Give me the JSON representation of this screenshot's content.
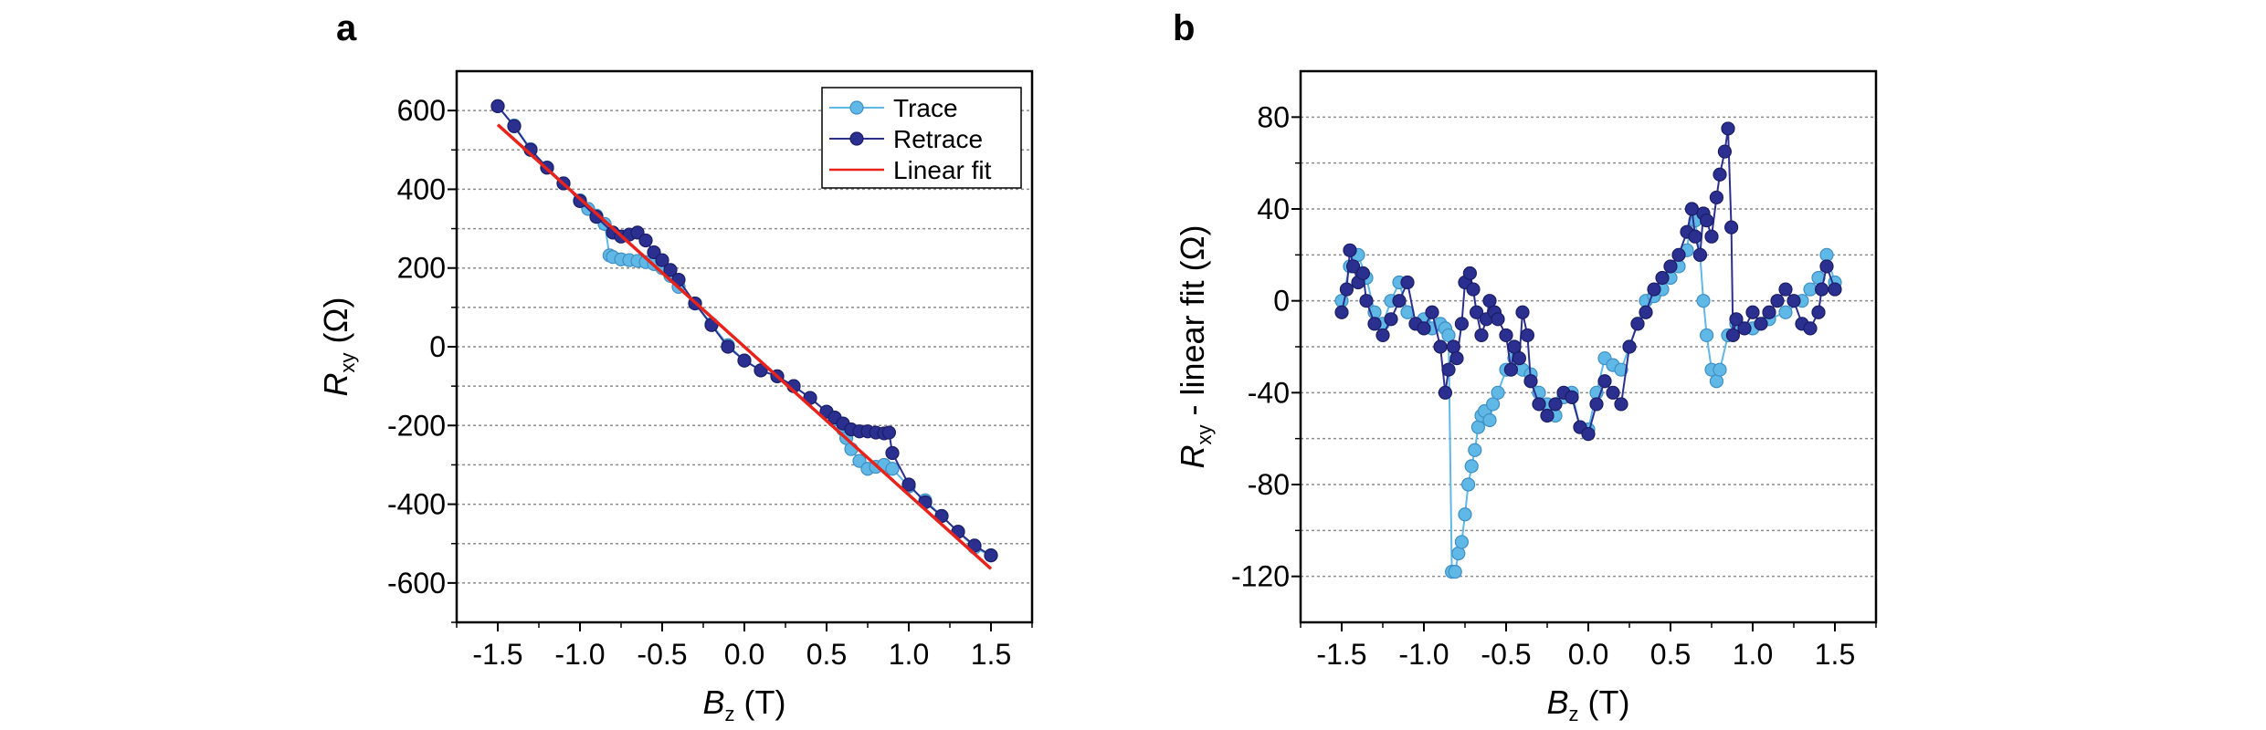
{
  "colors": {
    "trace": "#5fb8e6",
    "trace_stroke": "#3f8fc4",
    "retrace": "#2b2f8f",
    "retrace_stroke": "#1b1e66",
    "fit": "#e8231b",
    "grid": "#8c8c8c",
    "axis": "#000000"
  },
  "chart_data": [
    {
      "panel": "a",
      "type": "scatter",
      "xlabel": {
        "italic": "B",
        "sub": "z",
        "unit": " (T)"
      },
      "ylabel": {
        "italic": "R",
        "sub": "xy",
        "unit": " (Ω)"
      },
      "xlim": [
        -1.75,
        1.75
      ],
      "ylim": [
        -700,
        700
      ],
      "xticks": [
        -1.5,
        -1.0,
        -0.5,
        0.0,
        0.5,
        1.0,
        1.5
      ],
      "xtick_labels": [
        "-1.5",
        "-1.0",
        "-0.5",
        "0.0",
        "0.5",
        "1.0",
        "1.5"
      ],
      "yticks": [
        -600,
        -400,
        -200,
        0,
        200,
        400,
        600
      ],
      "ytick_labels": [
        "-600",
        "-400",
        "-200",
        "0",
        "200",
        "400",
        "600"
      ],
      "grid_y": [
        -700,
        -600,
        -500,
        -400,
        -300,
        -200,
        -100,
        0,
        100,
        200,
        300,
        400,
        500,
        600
      ],
      "legend": [
        "Trace",
        "Retrace",
        "Linear fit"
      ],
      "legend_position": "top-right",
      "linear_fit": {
        "slope": -376,
        "intercept": 0,
        "x_range": [
          -1.5,
          1.5
        ]
      },
      "series": [
        {
          "name": "Trace",
          "x": [
            -1.5,
            -1.4,
            -1.3,
            -1.2,
            -1.1,
            -1.0,
            -0.95,
            -0.9,
            -0.85,
            -0.82,
            -0.8,
            -0.75,
            -0.7,
            -0.65,
            -0.6,
            -0.55,
            -0.5,
            -0.45,
            -0.4,
            -0.3,
            -0.2,
            -0.1,
            0.0,
            0.1,
            0.2,
            0.3,
            0.4,
            0.5,
            0.55,
            0.6,
            0.62,
            0.65,
            0.7,
            0.75,
            0.8,
            0.85,
            0.9,
            1.0,
            1.1,
            1.2,
            1.3,
            1.4,
            1.5
          ],
          "y": [
            611,
            562,
            502,
            455,
            415,
            372,
            350,
            333,
            312,
            232,
            228,
            222,
            220,
            218,
            215,
            210,
            200,
            180,
            152,
            110,
            58,
            4,
            -35,
            -60,
            -75,
            -100,
            -130,
            -165,
            -185,
            -210,
            -232,
            -260,
            -290,
            -310,
            -305,
            -300,
            -310,
            -355,
            -390,
            -430,
            -470,
            -510,
            -530
          ]
        },
        {
          "name": "Retrace",
          "x": [
            -1.5,
            -1.4,
            -1.3,
            -1.2,
            -1.1,
            -1.0,
            -0.9,
            -0.8,
            -0.75,
            -0.7,
            -0.65,
            -0.6,
            -0.55,
            -0.5,
            -0.45,
            -0.4,
            -0.3,
            -0.2,
            -0.1,
            0.0,
            0.1,
            0.2,
            0.3,
            0.4,
            0.5,
            0.55,
            0.6,
            0.65,
            0.7,
            0.75,
            0.8,
            0.85,
            0.88,
            0.9,
            1.0,
            1.1,
            1.2,
            1.3,
            1.4,
            1.5
          ],
          "y": [
            611,
            560,
            500,
            455,
            415,
            370,
            330,
            290,
            280,
            285,
            290,
            270,
            240,
            220,
            195,
            170,
            110,
            55,
            0,
            -35,
            -60,
            -75,
            -100,
            -130,
            -165,
            -180,
            -195,
            -210,
            -215,
            -215,
            -218,
            -220,
            -218,
            -270,
            -350,
            -395,
            -430,
            -470,
            -505,
            -530
          ]
        }
      ]
    },
    {
      "panel": "b",
      "type": "scatter",
      "xlabel": {
        "italic": "B",
        "sub": "z",
        "unit": " (T)"
      },
      "ylabel": {
        "italic": "R",
        "sub": "xy",
        "unit": " - linear fit (Ω)"
      },
      "xlim": [
        -1.75,
        1.75
      ],
      "ylim": [
        -140,
        100
      ],
      "xticks": [
        -1.5,
        -1.0,
        -0.5,
        0.0,
        0.5,
        1.0,
        1.5
      ],
      "xtick_labels": [
        "-1.5",
        "-1.0",
        "-0.5",
        "0.0",
        "0.5",
        "1.0",
        "1.5"
      ],
      "yticks": [
        -120,
        -80,
        -40,
        0,
        40,
        80
      ],
      "ytick_labels": [
        "-120",
        "-80",
        "-40",
        "0",
        "40",
        "80"
      ],
      "grid_y": [
        -120,
        -100,
        -80,
        -60,
        -40,
        -20,
        0,
        20,
        40,
        60,
        80
      ],
      "series": [
        {
          "name": "Trace",
          "x": [
            -1.5,
            -1.45,
            -1.4,
            -1.35,
            -1.3,
            -1.25,
            -1.2,
            -1.15,
            -1.1,
            -1.05,
            -1.0,
            -0.95,
            -0.9,
            -0.87,
            -0.85,
            -0.83,
            -0.81,
            -0.79,
            -0.77,
            -0.75,
            -0.73,
            -0.71,
            -0.69,
            -0.67,
            -0.65,
            -0.63,
            -0.6,
            -0.58,
            -0.55,
            -0.5,
            -0.45,
            -0.4,
            -0.35,
            -0.3,
            -0.25,
            -0.2,
            -0.15,
            -0.1,
            -0.05,
            0.0,
            0.05,
            0.1,
            0.15,
            0.2,
            0.25,
            0.3,
            0.35,
            0.4,
            0.45,
            0.5,
            0.55,
            0.6,
            0.63,
            0.65,
            0.68,
            0.7,
            0.72,
            0.75,
            0.78,
            0.8,
            0.85,
            0.9,
            1.0,
            1.1,
            1.2,
            1.3,
            1.35,
            1.4,
            1.45,
            1.5
          ],
          "y": [
            0,
            15,
            20,
            10,
            -5,
            -10,
            0,
            8,
            -5,
            -10,
            -8,
            -12,
            -10,
            -12,
            -15,
            -118,
            -118,
            -110,
            -105,
            -93,
            -80,
            -72,
            -65,
            -55,
            -50,
            -48,
            -52,
            -45,
            -40,
            -30,
            -25,
            -30,
            -32,
            -40,
            -45,
            -50,
            -42,
            -40,
            -55,
            -56,
            -40,
            -25,
            -28,
            -30,
            -20,
            -10,
            0,
            2,
            5,
            10,
            15,
            22,
            40,
            35,
            20,
            0,
            -15,
            -30,
            -35,
            -30,
            -15,
            -10,
            -12,
            -8,
            -5,
            0,
            5,
            10,
            20,
            8
          ]
        },
        {
          "name": "Retrace",
          "x": [
            -1.5,
            -1.47,
            -1.45,
            -1.43,
            -1.4,
            -1.37,
            -1.35,
            -1.3,
            -1.25,
            -1.2,
            -1.15,
            -1.1,
            -1.05,
            -1.0,
            -0.95,
            -0.9,
            -0.87,
            -0.85,
            -0.82,
            -0.8,
            -0.77,
            -0.75,
            -0.72,
            -0.7,
            -0.68,
            -0.65,
            -0.62,
            -0.6,
            -0.57,
            -0.55,
            -0.5,
            -0.47,
            -0.45,
            -0.42,
            -0.4,
            -0.37,
            -0.35,
            -0.3,
            -0.25,
            -0.2,
            -0.15,
            -0.1,
            -0.05,
            0.0,
            0.05,
            0.1,
            0.15,
            0.2,
            0.25,
            0.3,
            0.35,
            0.4,
            0.45,
            0.5,
            0.55,
            0.6,
            0.63,
            0.65,
            0.68,
            0.7,
            0.72,
            0.75,
            0.78,
            0.8,
            0.83,
            0.85,
            0.87,
            0.88,
            0.9,
            0.95,
            1.0,
            1.05,
            1.1,
            1.15,
            1.2,
            1.25,
            1.3,
            1.35,
            1.4,
            1.42,
            1.45,
            1.5
          ],
          "y": [
            -5,
            5,
            22,
            15,
            8,
            12,
            0,
            -10,
            -15,
            -8,
            0,
            8,
            -10,
            -12,
            -5,
            -20,
            -40,
            -30,
            -20,
            -25,
            -10,
            8,
            12,
            5,
            -5,
            -15,
            -8,
            0,
            -5,
            -8,
            -15,
            -30,
            -20,
            -25,
            -5,
            -15,
            -35,
            -45,
            -50,
            -45,
            -40,
            -42,
            -55,
            -58,
            -45,
            -35,
            -40,
            -45,
            -20,
            -10,
            -5,
            5,
            10,
            15,
            20,
            30,
            40,
            28,
            20,
            38,
            35,
            28,
            45,
            55,
            65,
            75,
            32,
            -15,
            -8,
            -12,
            -5,
            -10,
            -5,
            0,
            5,
            0,
            -10,
            -12,
            -5,
            5,
            15,
            5
          ]
        }
      ]
    }
  ]
}
